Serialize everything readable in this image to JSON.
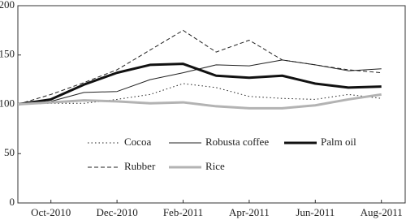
{
  "chart_data": {
    "type": "line",
    "categories": [
      null,
      "Oct-2010",
      null,
      "Dec-2010",
      null,
      "Feb-2011",
      null,
      "Apr-2011",
      null,
      "Jun-2011",
      null,
      "Aug-2011"
    ],
    "series": [
      {
        "name": "Cocoa",
        "color": "#222222",
        "dash": "1.5,3",
        "width": 1,
        "values": [
          100,
          101,
          101,
          105,
          110,
          121,
          117,
          108,
          106,
          105,
          110,
          106
        ]
      },
      {
        "name": "Robusta coffee",
        "color": "#222222",
        "dash": "none",
        "width": 1,
        "values": [
          100,
          103,
          112,
          113,
          125,
          132,
          140,
          139,
          145,
          140,
          134,
          136
        ]
      },
      {
        "name": "Palm oil",
        "color": "#111111",
        "dash": "none",
        "width": 3,
        "values": [
          100,
          105,
          120,
          132,
          140,
          141,
          129,
          127,
          129,
          121,
          117,
          118
        ]
      },
      {
        "name": "Rubber",
        "color": "#222222",
        "dash": "5,3",
        "width": 1,
        "values": [
          100,
          110,
          122,
          135,
          155,
          175,
          153,
          165,
          145,
          140,
          135,
          132
        ]
      },
      {
        "name": "Rice",
        "color": "#b3b3b3",
        "dash": "none",
        "width": 3,
        "values": [
          100,
          102,
          104,
          103,
          101,
          102,
          98,
          96,
          96,
          99,
          105,
          110
        ]
      }
    ],
    "ylim": [
      0,
      200
    ],
    "yticks": [
      0,
      50,
      100,
      150,
      200
    ],
    "grid": false,
    "legend": "inside-bottom"
  }
}
